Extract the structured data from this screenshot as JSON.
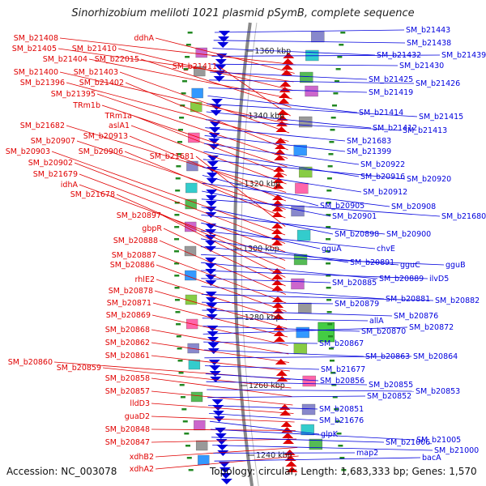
{
  "title": "Sinorhizobium meliloti 1021 plasmid pSymB, complete sequence",
  "footer": {
    "accession": "Accession: NC_003078",
    "topology": "Topology: circular; Length: 1,683,333 bp; Genes: 1,570"
  },
  "colors": {
    "forward": "#e00000",
    "reverse": "#0000dd",
    "axis": "#888888"
  },
  "kbp_markers": [
    "1360 kbp",
    "1340 kbp",
    "1320 kbp",
    "1300 kbp",
    "1280 kbp",
    "1260 kbp",
    "1240 kbp"
  ],
  "left_labels": [
    "SM_b21408",
    "ddhA",
    "SM_b21405",
    "SM_b21410",
    "SM_b21404",
    "SM_b22015",
    "SM_b21411",
    "SM_b21400",
    "SM_b21403",
    "SM_b21396",
    "SM_b21402",
    "SM_b21395",
    "TRm1b",
    "TRm1a",
    "aslA1",
    "SM_b21682",
    "SM_b20913",
    "SM_b20907",
    "SM_b20906",
    "SM_b21681",
    "SM_b20903",
    "SM_b20902",
    "SM_b21679",
    "idhA",
    "SM_b21678",
    "SM_b20897",
    "gbpR",
    "SM_b20888",
    "SM_b20887",
    "SM_b20886",
    "rhlE2",
    "SM_b20878",
    "SM_b20871",
    "SM_b20869",
    "SM_b20868",
    "SM_b20862",
    "SM_b20861",
    "SM_b20860",
    "SM_b20859",
    "SM_b20858",
    "SM_b20857",
    "lldD3",
    "guaD2",
    "SM_b20848",
    "SM_b20847",
    "xdhB2",
    "xdhA2"
  ],
  "right_labels": [
    "SM_b21443",
    "SM_b21438",
    "SM_b21432",
    "SM_b21439",
    "SM_b21430",
    "SM_b21425",
    "SM_b21426",
    "SM_b21419",
    "SM_b21414",
    "SM_b21415",
    "SM_b21412",
    "SM_b21413",
    "SM_b21683",
    "SM_b21399",
    "SM_b20922",
    "SM_b20916",
    "SM_b20920",
    "SM_b20912",
    "SM_b20905",
    "SM_b20908",
    "SM_b20901",
    "SM_b21680",
    "SM_b20898",
    "SM_b20900",
    "gguA",
    "chvE",
    "SM_b20891",
    "gguC",
    "gguB",
    "SM_b20889",
    "ilvD5",
    "SM_b20885",
    "SM_b20881",
    "SM_b20882",
    "SM_b20879",
    "SM_b20876",
    "allA",
    "SM_b20870",
    "SM_b20872",
    "SM_b20867",
    "SM_b20863",
    "SM_b20864",
    "SM_b21677",
    "SM_b20856",
    "SM_b20855",
    "SM_b20853",
    "SM_b20852",
    "SM_b20851",
    "SM_b21676",
    "glpK",
    "SM_b21005",
    "SM_b21006",
    "SM_b21000",
    "map2",
    "bacA"
  ]
}
